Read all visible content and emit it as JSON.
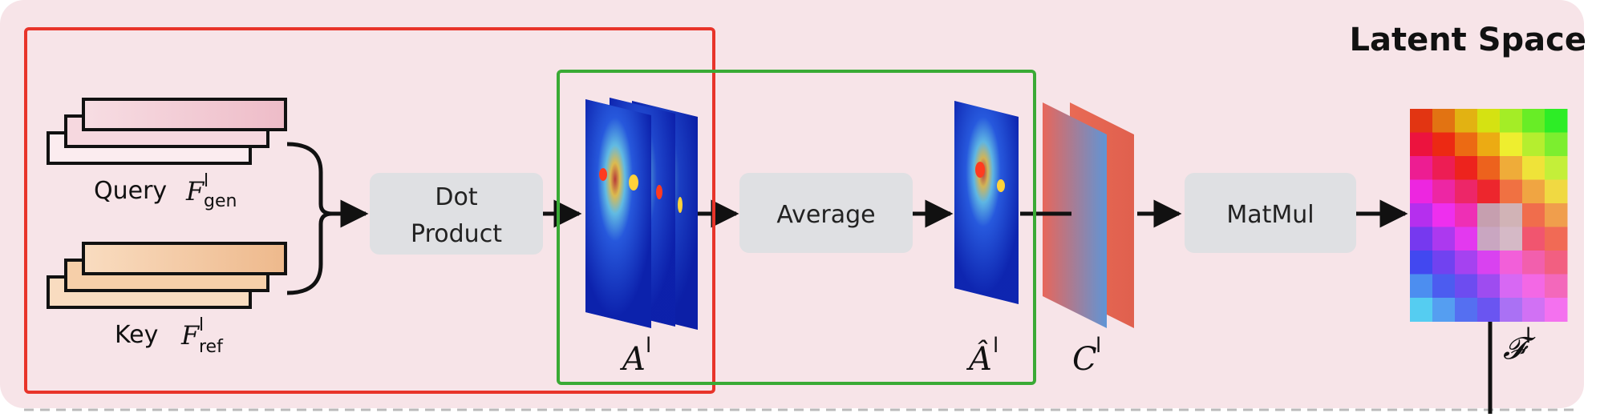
{
  "region_title": "Latent Space",
  "ops": {
    "dot_product": [
      "Dot",
      "Product"
    ],
    "average": "Average",
    "matmul": "MatMul"
  },
  "inputs": {
    "query_word": "Query",
    "query_sub": "gen",
    "key_word": "Key",
    "key_sub": "ref",
    "feature_letter": "F",
    "layer_sup": "l"
  },
  "maps": {
    "A": "A",
    "A_hat": "Â",
    "C": "C",
    "F_out": "𝓕",
    "layer_sup": "l"
  },
  "colors": {
    "background": "#f7e4e8",
    "op_box": "#dfe0e3",
    "red_frame": "#e8342a",
    "green_frame": "#3aaa35",
    "query_fill": "#f2c9d2",
    "key_fill": "#f3c9a0"
  }
}
